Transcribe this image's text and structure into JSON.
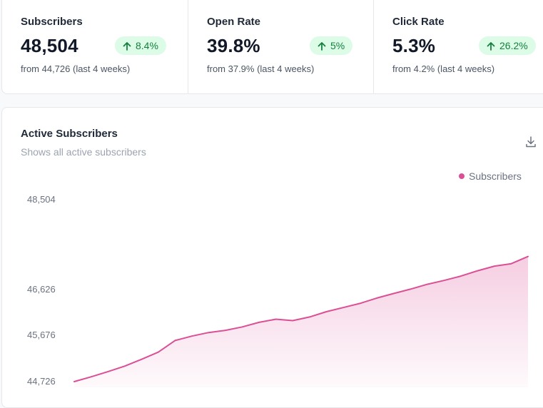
{
  "stats": [
    {
      "label": "Subscribers",
      "value": "48,504",
      "change": "8.4%",
      "sub": "from 44,726 (last 4 weeks)"
    },
    {
      "label": "Open Rate",
      "value": "39.8%",
      "change": "5%",
      "sub": "from 37.9% (last 4 weeks)"
    },
    {
      "label": "Click Rate",
      "value": "5.3%",
      "change": "26.2%",
      "sub": "from 4.2% (last 4 weeks)"
    }
  ],
  "chart": {
    "title": "Active Subscribers",
    "subtitle": "Shows all active subscribers",
    "download_icon": "download-icon",
    "legend_label": "Subscribers"
  },
  "colors": {
    "accent": "#db4f96",
    "positive_bg": "#dcfce7",
    "positive_text": "#15803d"
  },
  "chart_data": {
    "type": "area",
    "title": "Active Subscribers",
    "subtitle": "Shows all active subscribers",
    "series": [
      {
        "name": "Subscribers",
        "color": "#db4f96",
        "values": [
          44726,
          44825,
          44930,
          45045,
          45185,
          45335,
          45575,
          45665,
          45740,
          45785,
          45855,
          45950,
          46015,
          45985,
          46060,
          46170,
          46255,
          46340,
          46450,
          46545,
          46635,
          46735,
          46815,
          46905,
          47015,
          47110,
          47160,
          47310
        ]
      }
    ],
    "y_ticks": [
      {
        "value": 44726,
        "label": "44,726"
      },
      {
        "value": 45676,
        "label": "45,676"
      },
      {
        "value": 46626,
        "label": "46,626"
      },
      {
        "value": 48504,
        "label": "48,504"
      }
    ],
    "legend": "top-right",
    "grid": false
  }
}
